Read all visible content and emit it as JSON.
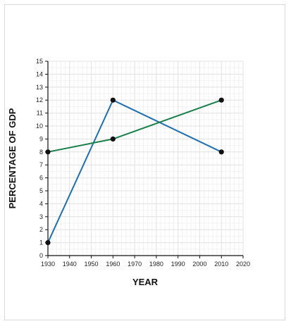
{
  "chart_data": {
    "type": "line",
    "title": "",
    "xlabel": "YEAR",
    "ylabel": "PERCENTAGE OF GDP",
    "xlim": [
      1930,
      2020
    ],
    "ylim": [
      0,
      15
    ],
    "x_ticks": [
      1930,
      1940,
      1950,
      1960,
      1970,
      1980,
      1990,
      2000,
      2010,
      2020
    ],
    "y_ticks": [
      0,
      1,
      2,
      3,
      4,
      5,
      6,
      7,
      8,
      9,
      10,
      11,
      12,
      13,
      14,
      15
    ],
    "grid": true,
    "series": [
      {
        "color": "#1f6fb2",
        "points": [
          [
            1930,
            1
          ],
          [
            1960,
            12
          ],
          [
            2010,
            8
          ]
        ]
      },
      {
        "color": "#168048",
        "points": [
          [
            1930,
            8
          ],
          [
            1960,
            9
          ],
          [
            2010,
            12
          ]
        ]
      }
    ]
  }
}
